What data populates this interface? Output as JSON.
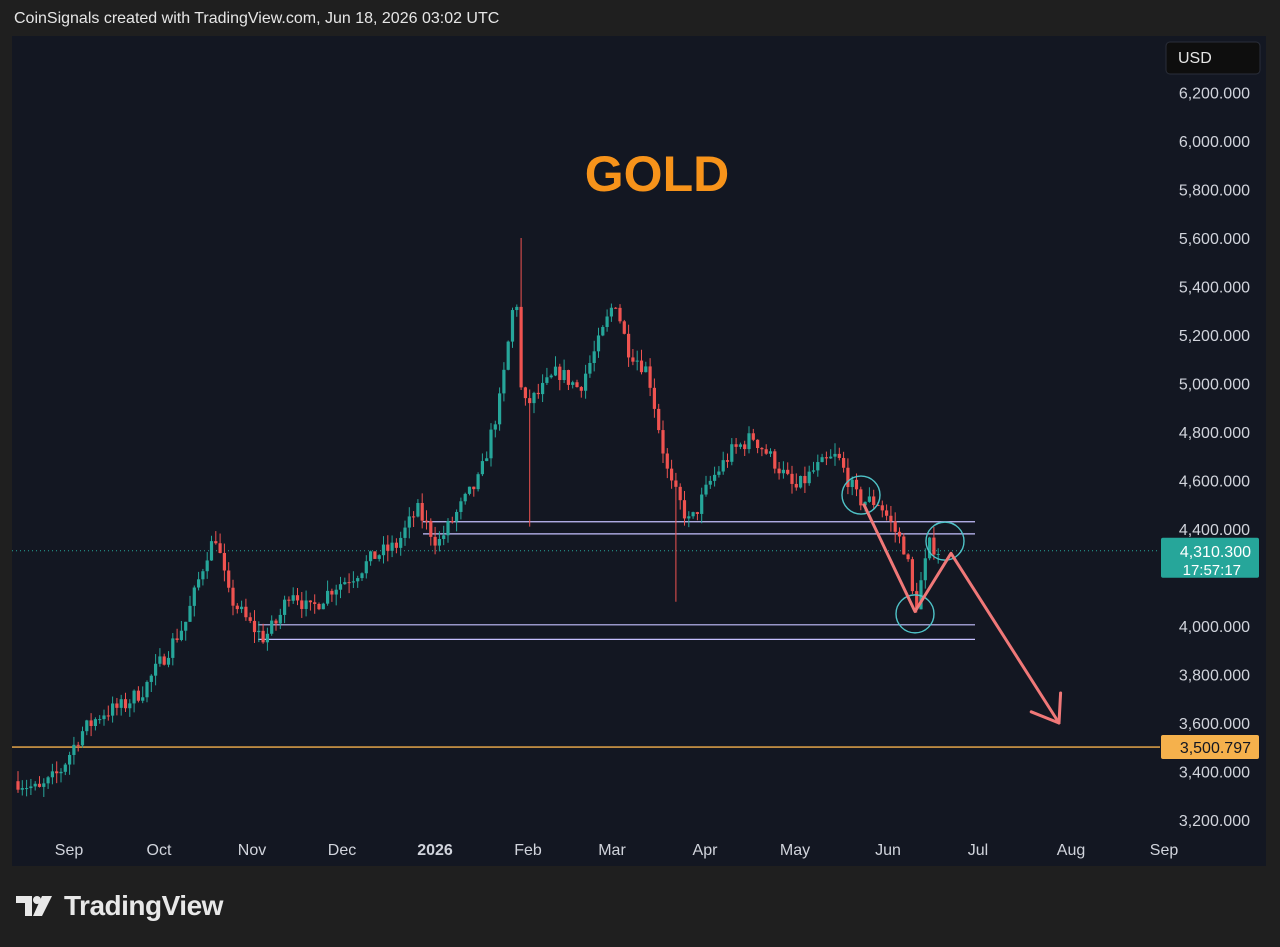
{
  "header": {
    "credit": "CoinSignals created with TradingView.com, Jun 18, 2026 03:02 UTC"
  },
  "footer": {
    "brand": "TradingView",
    "logo_icon": "tradingview-logo-icon"
  },
  "colors": {
    "up": "#26a69a",
    "down": "#ef5350",
    "title": "#f7931a",
    "level": "#f5b14c",
    "zone": "#c5c0ff",
    "arrow": "#f07878",
    "circle": "#4fc3c8"
  },
  "chart_data": {
    "type": "candlestick",
    "title": "GOLD",
    "currency": "USD",
    "y_ticks": [
      "6,200.000",
      "6,000.000",
      "5,800.000",
      "5,600.000",
      "5,400.000",
      "5,200.000",
      "5,000.000",
      "4,800.000",
      "4,600.000",
      "4,400.000",
      "4,000.000",
      "3,800.000",
      "3,600.000",
      "3,400.000",
      "3,200.000"
    ],
    "x_ticks": [
      "Sep",
      "Oct",
      "Nov",
      "Dec",
      "2026",
      "Feb",
      "Mar",
      "Apr",
      "May",
      "Jun",
      "Jul",
      "Aug",
      "Sep"
    ],
    "ylim": [
      3150,
      6300
    ],
    "last_price": "4,310.300",
    "countdown": "17:57:17",
    "level_price": "3,500.797",
    "level_value": 3500.797,
    "last_value": 4310.3,
    "zones": [
      {
        "from": "2025-12-28",
        "to": "2026-06-30",
        "low": 4380,
        "high": 4430
      },
      {
        "from": "2025-11-03",
        "to": "2026-06-30",
        "low": 3945,
        "high": 4005
      }
    ],
    "path": [
      [
        "2025-08-15",
        3360
      ],
      [
        "2025-08-22",
        3320
      ],
      [
        "2025-08-29",
        3400
      ],
      [
        "2025-09-05",
        3560
      ],
      [
        "2025-09-12",
        3640
      ],
      [
        "2025-09-19",
        3670
      ],
      [
        "2025-09-26",
        3740
      ],
      [
        "2025-10-03",
        3880
      ],
      [
        "2025-10-10",
        4020
      ],
      [
        "2025-10-17",
        4300
      ],
      [
        "2025-10-20",
        4370
      ],
      [
        "2025-10-24",
        4130
      ],
      [
        "2025-10-31",
        4010
      ],
      [
        "2025-11-05",
        3950
      ],
      [
        "2025-11-10",
        4030
      ],
      [
        "2025-11-14",
        4160
      ],
      [
        "2025-11-20",
        4060
      ],
      [
        "2025-11-28",
        4160
      ],
      [
        "2025-12-05",
        4210
      ],
      [
        "2025-12-12",
        4290
      ],
      [
        "2025-12-19",
        4330
      ],
      [
        "2025-12-26",
        4480
      ],
      [
        "2026-01-02",
        4340
      ],
      [
        "2026-01-09",
        4480
      ],
      [
        "2026-01-16",
        4610
      ],
      [
        "2026-01-23",
        4950
      ],
      [
        "2026-01-28",
        5400
      ],
      [
        "2026-01-30",
        4900
      ],
      [
        "2026-02-04",
        4950
      ],
      [
        "2026-02-11",
        5050
      ],
      [
        "2026-02-18",
        4980
      ],
      [
        "2026-02-25",
        5180
      ],
      [
        "2026-03-02",
        5350
      ],
      [
        "2026-03-06",
        5150
      ],
      [
        "2026-03-13",
        5050
      ],
      [
        "2026-03-20",
        4600
      ],
      [
        "2026-03-27",
        4420
      ],
      [
        "2026-04-03",
        4600
      ],
      [
        "2026-04-10",
        4720
      ],
      [
        "2026-04-17",
        4780
      ],
      [
        "2026-04-24",
        4680
      ],
      [
        "2026-05-01",
        4560
      ],
      [
        "2026-05-08",
        4650
      ],
      [
        "2026-05-15",
        4700
      ],
      [
        "2026-05-22",
        4520
      ],
      [
        "2026-05-29",
        4510
      ],
      [
        "2026-06-03",
        4400
      ],
      [
        "2026-06-07",
        4310
      ],
      [
        "2026-06-10",
        4060
      ],
      [
        "2026-06-12",
        4180
      ],
      [
        "2026-06-15",
        4340
      ],
      [
        "2026-06-18",
        4310
      ]
    ],
    "circles": [
      [
        "2026-05-23",
        4540
      ],
      [
        "2026-06-10",
        4050
      ],
      [
        "2026-06-20",
        4350
      ]
    ],
    "projection": [
      [
        "2026-05-24",
        4500
      ],
      [
        "2026-06-10",
        4060
      ],
      [
        "2026-06-22",
        4300
      ],
      [
        "2026-07-28",
        3600
      ]
    ]
  }
}
